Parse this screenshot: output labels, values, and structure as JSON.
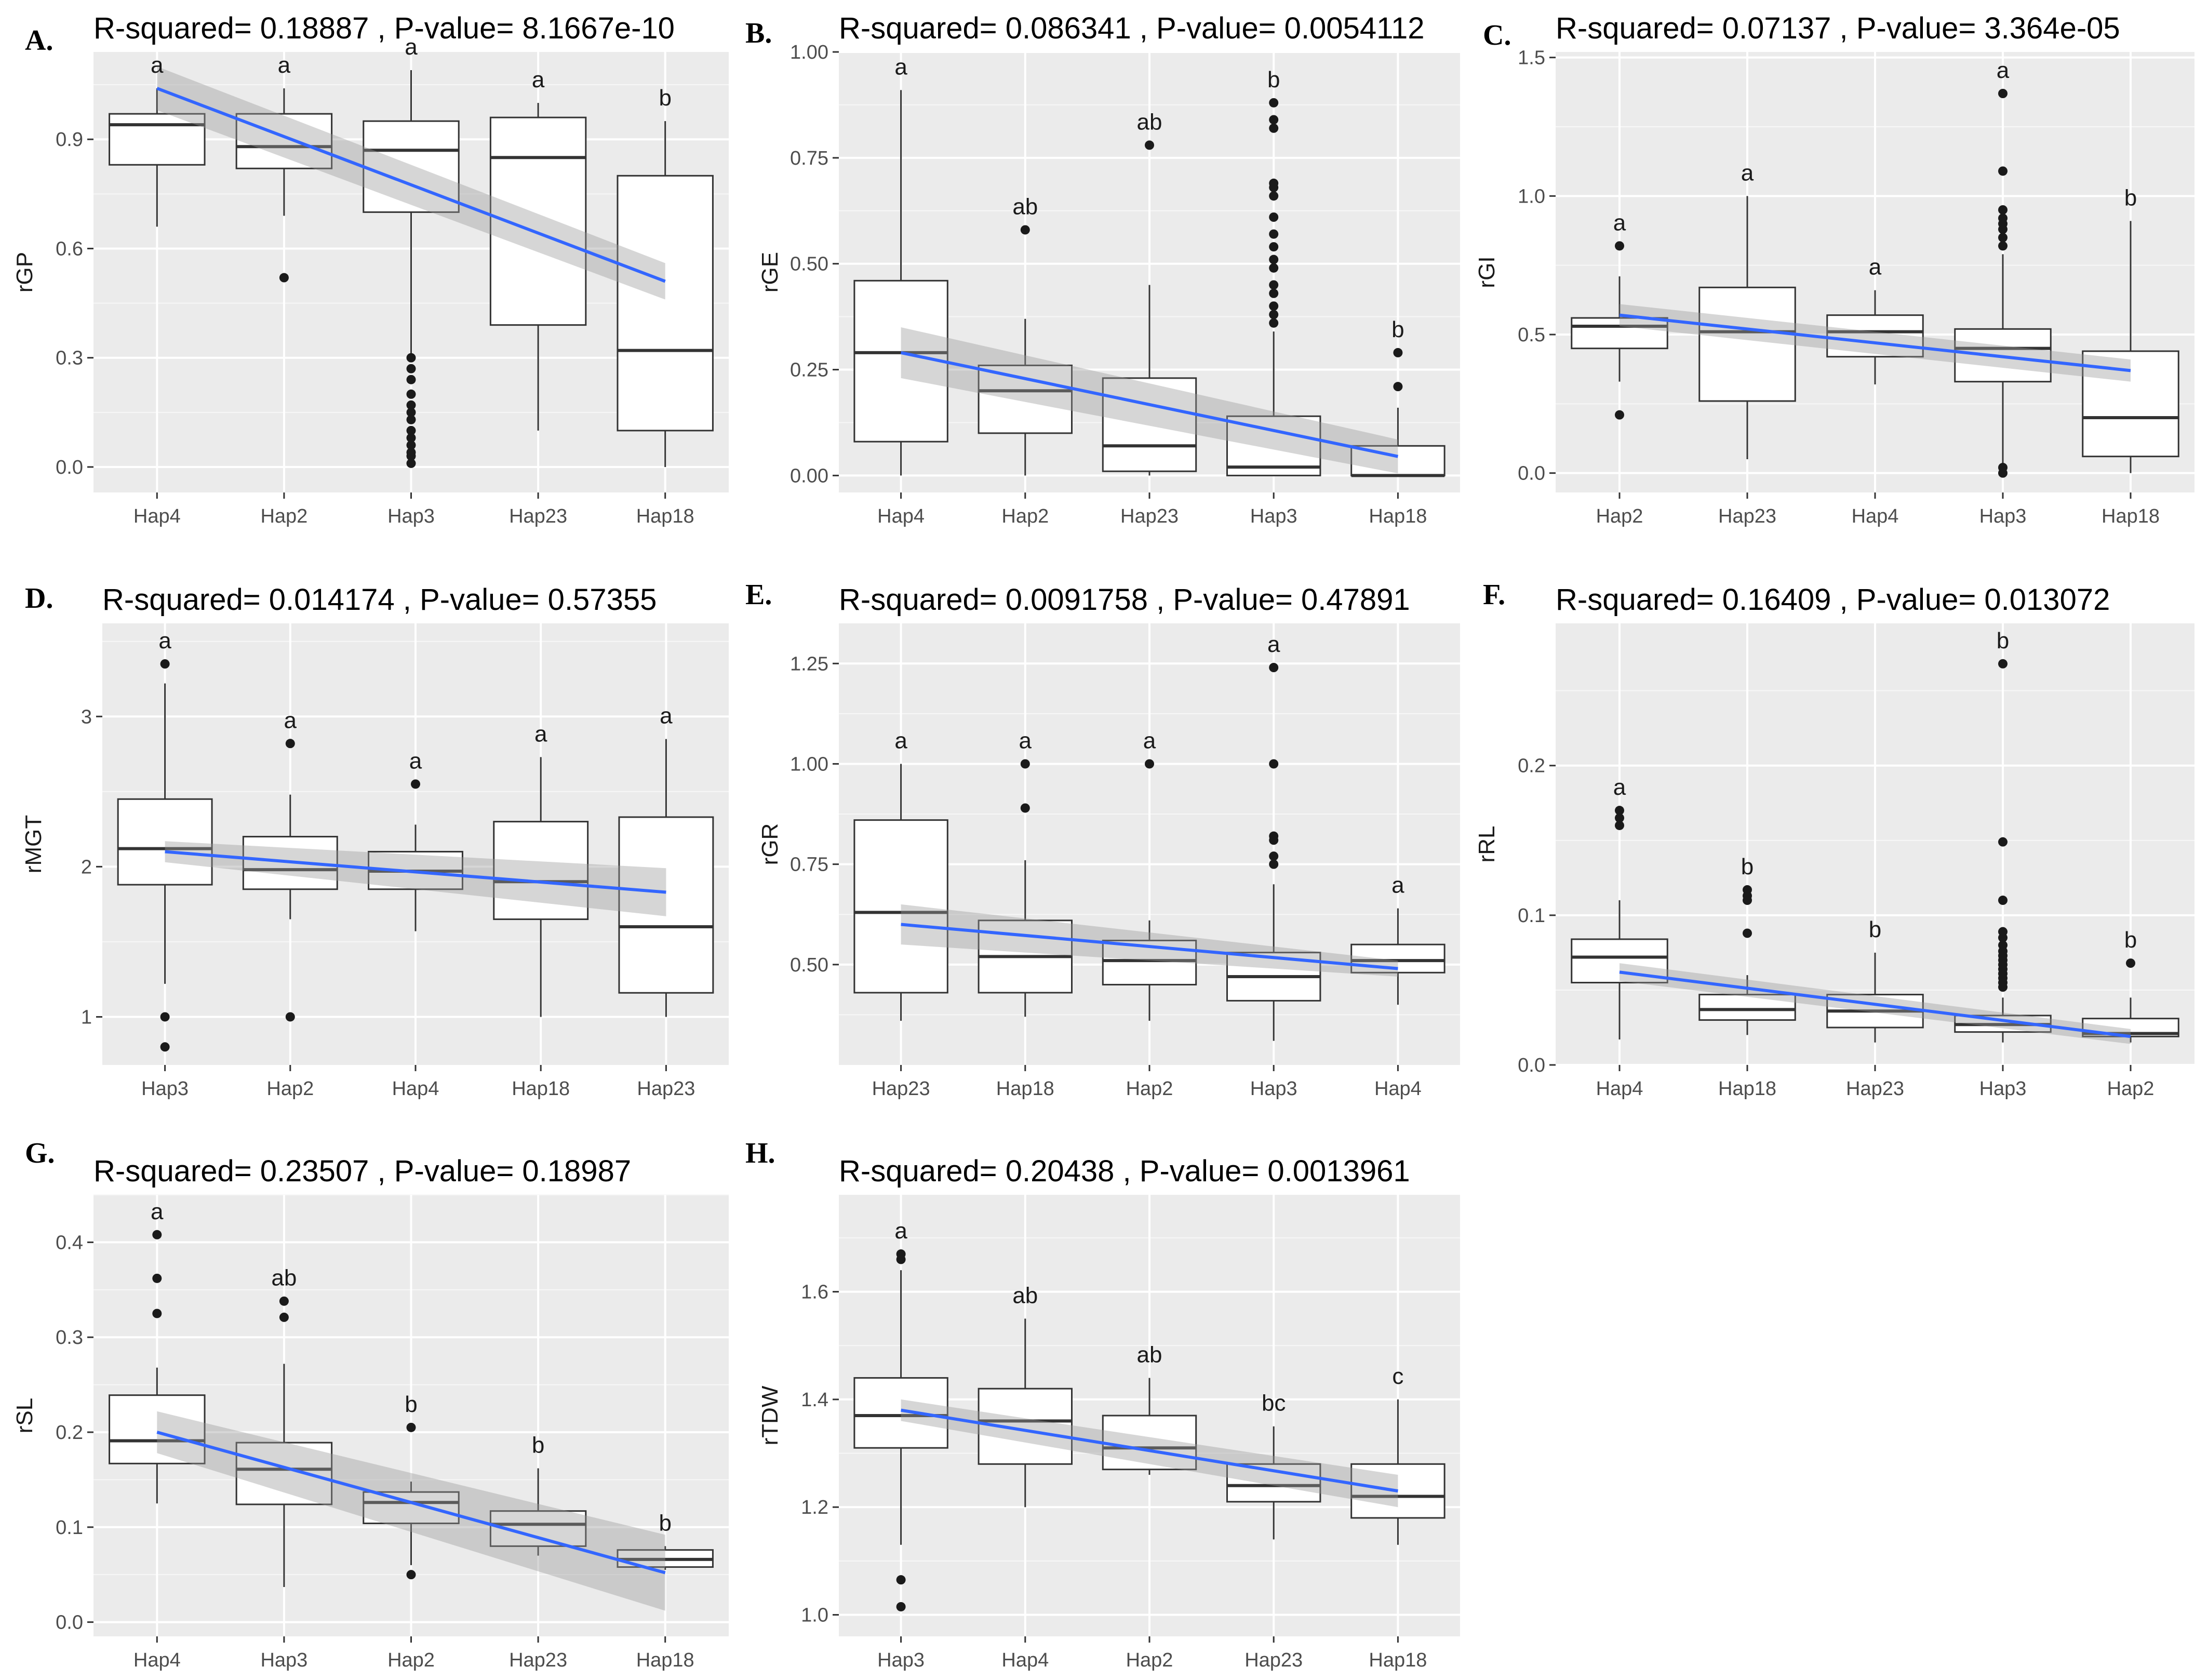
{
  "chart_data": [
    {
      "panel": "A.",
      "type": "box",
      "title": "R-squared= 0.18887 , P-value= 8.1667e-10",
      "ylabel": "rGP",
      "ylim": [
        -0.07,
        1.14
      ],
      "yticks": [
        0.0,
        0.3,
        0.6,
        0.9
      ],
      "ytick_labels": [
        "0.0",
        "0.3",
        "0.6",
        "0.9"
      ],
      "categories": [
        "Hap4",
        "Hap2",
        "Hap3",
        "Hap23",
        "Hap18"
      ],
      "boxes": [
        {
          "q1": 0.83,
          "median": 0.94,
          "q3": 0.97,
          "wlo": 0.66,
          "whi": 1.04,
          "outliers": []
        },
        {
          "q1": 0.82,
          "median": 0.88,
          "q3": 0.97,
          "wlo": 0.69,
          "whi": 1.04,
          "outliers": [
            0.52
          ]
        },
        {
          "q1": 0.7,
          "median": 0.87,
          "q3": 0.95,
          "wlo": 0.31,
          "whi": 1.09,
          "outliers": [
            0.3,
            0.27,
            0.24,
            0.2,
            0.17,
            0.15,
            0.13,
            0.1,
            0.08,
            0.06,
            0.04,
            0.03,
            0.01
          ]
        },
        {
          "q1": 0.39,
          "median": 0.85,
          "q3": 0.96,
          "wlo": 0.1,
          "whi": 1.0,
          "outliers": []
        },
        {
          "q1": 0.1,
          "median": 0.32,
          "q3": 0.8,
          "wlo": 0.0,
          "whi": 0.95,
          "outliers": []
        }
      ],
      "letters": [
        "a",
        "a",
        "a",
        "a",
        "b"
      ],
      "fit": [
        1.04,
        0.51
      ],
      "band": [
        0.06,
        0.05
      ]
    },
    {
      "panel": "B.",
      "type": "box",
      "title": "R-squared= 0.086341 , P-value= 0.0054112",
      "ylabel": "rGE",
      "ylim": [
        -0.04,
        1.0
      ],
      "yticks": [
        0.0,
        0.25,
        0.5,
        0.75,
        1.0
      ],
      "ytick_labels": [
        "0.00",
        "0.25",
        "0.50",
        "0.75",
        "1.00"
      ],
      "categories": [
        "Hap4",
        "Hap2",
        "Hap23",
        "Hap3",
        "Hap18"
      ],
      "boxes": [
        {
          "q1": 0.08,
          "median": 0.29,
          "q3": 0.46,
          "wlo": 0.0,
          "whi": 0.91,
          "outliers": []
        },
        {
          "q1": 0.1,
          "median": 0.2,
          "q3": 0.26,
          "wlo": 0.0,
          "whi": 0.37,
          "outliers": [
            0.58
          ]
        },
        {
          "q1": 0.01,
          "median": 0.07,
          "q3": 0.23,
          "wlo": 0.0,
          "whi": 0.45,
          "outliers": [
            0.78
          ]
        },
        {
          "q1": 0.0,
          "median": 0.02,
          "q3": 0.14,
          "wlo": 0.0,
          "whi": 0.34,
          "outliers": [
            0.36,
            0.38,
            0.4,
            0.43,
            0.45,
            0.49,
            0.51,
            0.54,
            0.57,
            0.61,
            0.66,
            0.68,
            0.69,
            0.82,
            0.84,
            0.88
          ]
        },
        {
          "q1": 0.0,
          "median": 0.0,
          "q3": 0.07,
          "wlo": 0.0,
          "whi": 0.16,
          "outliers": [
            0.21,
            0.29
          ]
        }
      ],
      "letters": [
        "a",
        "ab",
        "ab",
        "b",
        "b"
      ],
      "fit": [
        0.29,
        0.045
      ],
      "band": [
        0.06,
        0.04
      ]
    },
    {
      "panel": "C.",
      "type": "box",
      "title": "R-squared= 0.07137 , P-value= 3.364e-05",
      "ylabel": "rGI",
      "ylim": [
        -0.07,
        1.52
      ],
      "yticks": [
        0.0,
        0.5,
        1.0,
        1.5
      ],
      "ytick_labels": [
        "0.0",
        "0.5",
        "1.0",
        "1.5"
      ],
      "categories": [
        "Hap2",
        "Hap23",
        "Hap4",
        "Hap3",
        "Hap18"
      ],
      "boxes": [
        {
          "q1": 0.45,
          "median": 0.53,
          "q3": 0.56,
          "wlo": 0.33,
          "whi": 0.71,
          "outliers": [
            0.21,
            0.82
          ]
        },
        {
          "q1": 0.26,
          "median": 0.51,
          "q3": 0.67,
          "wlo": 0.05,
          "whi": 1.0,
          "outliers": []
        },
        {
          "q1": 0.42,
          "median": 0.51,
          "q3": 0.57,
          "wlo": 0.32,
          "whi": 0.66,
          "outliers": []
        },
        {
          "q1": 0.33,
          "median": 0.45,
          "q3": 0.52,
          "wlo": 0.03,
          "whi": 0.79,
          "outliers": [
            0.0,
            0.02,
            0.82,
            0.85,
            0.88,
            0.9,
            0.92,
            0.95,
            1.09,
            1.37
          ]
        },
        {
          "q1": 0.06,
          "median": 0.2,
          "q3": 0.44,
          "wlo": 0.0,
          "whi": 0.91,
          "outliers": []
        }
      ],
      "letters": [
        "a",
        "a",
        "a",
        "a",
        "b"
      ],
      "fit": [
        0.57,
        0.37
      ],
      "band": [
        0.04,
        0.04
      ]
    },
    {
      "panel": "D.",
      "type": "box",
      "title": "R-squared= 0.014174 , P-value= 0.57355",
      "ylabel": "rMGT",
      "ylim": [
        0.68,
        3.62
      ],
      "yticks": [
        1,
        2,
        3
      ],
      "ytick_labels": [
        "1",
        "2",
        "3"
      ],
      "categories": [
        "Hap3",
        "Hap2",
        "Hap4",
        "Hap18",
        "Hap23"
      ],
      "boxes": [
        {
          "q1": 1.88,
          "median": 2.12,
          "q3": 2.45,
          "wlo": 1.22,
          "whi": 3.22,
          "outliers": [
            0.8,
            1.0,
            3.35
          ]
        },
        {
          "q1": 1.85,
          "median": 1.98,
          "q3": 2.2,
          "wlo": 1.65,
          "whi": 2.48,
          "outliers": [
            1.0,
            2.82
          ]
        },
        {
          "q1": 1.85,
          "median": 1.97,
          "q3": 2.1,
          "wlo": 1.57,
          "whi": 2.28,
          "outliers": [
            2.55
          ]
        },
        {
          "q1": 1.65,
          "median": 1.9,
          "q3": 2.3,
          "wlo": 1.0,
          "whi": 2.73,
          "outliers": []
        },
        {
          "q1": 1.16,
          "median": 1.6,
          "q3": 2.33,
          "wlo": 1.0,
          "whi": 2.85,
          "outliers": []
        }
      ],
      "letters": [
        "a",
        "a",
        "a",
        "a",
        "a"
      ],
      "fit": [
        2.1,
        1.83
      ],
      "band": [
        0.07,
        0.16
      ]
    },
    {
      "panel": "E.",
      "type": "box",
      "title": "R-squared= 0.0091758 , P-value= 0.47891",
      "ylabel": "rGR",
      "ylim": [
        0.25,
        1.35
      ],
      "yticks": [
        0.5,
        0.75,
        1.0,
        1.25
      ],
      "ytick_labels": [
        "0.50",
        "0.75",
        "1.00",
        "1.25"
      ],
      "categories": [
        "Hap23",
        "Hap18",
        "Hap2",
        "Hap3",
        "Hap4"
      ],
      "boxes": [
        {
          "q1": 0.43,
          "median": 0.63,
          "q3": 0.86,
          "wlo": 0.36,
          "whi": 1.0,
          "outliers": []
        },
        {
          "q1": 0.43,
          "median": 0.52,
          "q3": 0.61,
          "wlo": 0.37,
          "whi": 0.76,
          "outliers": [
            0.89,
            1.0
          ]
        },
        {
          "q1": 0.45,
          "median": 0.51,
          "q3": 0.56,
          "wlo": 0.36,
          "whi": 0.61,
          "outliers": [
            1.0
          ]
        },
        {
          "q1": 0.41,
          "median": 0.47,
          "q3": 0.53,
          "wlo": 0.31,
          "whi": 0.7,
          "outliers": [
            0.75,
            0.77,
            0.81,
            0.82,
            1.0,
            1.24
          ]
        },
        {
          "q1": 0.48,
          "median": 0.51,
          "q3": 0.55,
          "wlo": 0.4,
          "whi": 0.64,
          "outliers": []
        }
      ],
      "letters": [
        "a",
        "a",
        "a",
        "a",
        "a"
      ],
      "fit": [
        0.6,
        0.49
      ],
      "band": [
        0.05,
        0.02
      ]
    },
    {
      "panel": "F.",
      "type": "box",
      "title": "R-squared= 0.16409 , P-value= 0.013072",
      "ylabel": "rRL",
      "ylim": [
        0.0,
        0.295
      ],
      "yticks": [
        0.0,
        0.1,
        0.2
      ],
      "ytick_labels": [
        "0.0",
        "0.1",
        "0.2"
      ],
      "categories": [
        "Hap4",
        "Hap18",
        "Hap23",
        "Hap3",
        "Hap2"
      ],
      "boxes": [
        {
          "q1": 0.055,
          "median": 0.072,
          "q3": 0.084,
          "wlo": 0.017,
          "whi": 0.11,
          "outliers": [
            0.16,
            0.165,
            0.17
          ]
        },
        {
          "q1": 0.03,
          "median": 0.037,
          "q3": 0.047,
          "wlo": 0.02,
          "whi": 0.06,
          "outliers": [
            0.088,
            0.11,
            0.113,
            0.117
          ]
        },
        {
          "q1": 0.025,
          "median": 0.036,
          "q3": 0.047,
          "wlo": 0.015,
          "whi": 0.075,
          "outliers": []
        },
        {
          "q1": 0.022,
          "median": 0.027,
          "q3": 0.033,
          "wlo": 0.015,
          "whi": 0.045,
          "outliers": [
            0.052,
            0.055,
            0.058,
            0.061,
            0.064,
            0.067,
            0.07,
            0.073,
            0.076,
            0.08,
            0.085,
            0.089,
            0.11,
            0.149,
            0.268
          ]
        },
        {
          "q1": 0.019,
          "median": 0.021,
          "q3": 0.031,
          "wlo": 0.015,
          "whi": 0.045,
          "outliers": [
            0.068
          ]
        }
      ],
      "letters": [
        "a",
        "b",
        "b",
        "b",
        "b"
      ],
      "fit": [
        0.062,
        0.019
      ],
      "band": [
        0.006,
        0.005
      ]
    },
    {
      "panel": "G.",
      "type": "box",
      "title": "R-squared= 0.23507 , P-value= 0.18987",
      "ylabel": "rSL",
      "ylim": [
        -0.015,
        0.45
      ],
      "yticks": [
        0.0,
        0.1,
        0.2,
        0.3,
        0.4
      ],
      "ytick_labels": [
        "0.0",
        "0.1",
        "0.2",
        "0.3",
        "0.4"
      ],
      "categories": [
        "Hap4",
        "Hap3",
        "Hap2",
        "Hap23",
        "Hap18"
      ],
      "boxes": [
        {
          "q1": 0.167,
          "median": 0.191,
          "q3": 0.239,
          "wlo": 0.125,
          "whi": 0.268,
          "outliers": [
            0.325,
            0.362,
            0.408
          ]
        },
        {
          "q1": 0.124,
          "median": 0.161,
          "q3": 0.189,
          "wlo": 0.037,
          "whi": 0.272,
          "outliers": [
            0.321,
            0.338
          ]
        },
        {
          "q1": 0.104,
          "median": 0.126,
          "q3": 0.137,
          "wlo": 0.06,
          "whi": 0.148,
          "outliers": [
            0.05,
            0.205
          ]
        },
        {
          "q1": 0.08,
          "median": 0.103,
          "q3": 0.117,
          "wlo": 0.07,
          "whi": 0.162,
          "outliers": []
        },
        {
          "q1": 0.058,
          "median": 0.066,
          "q3": 0.076,
          "wlo": 0.055,
          "whi": 0.08,
          "outliers": []
        }
      ],
      "letters": [
        "a",
        "ab",
        "b",
        "b",
        "b"
      ],
      "fit": [
        0.2,
        0.052
      ],
      "band": [
        0.022,
        0.04
      ]
    },
    {
      "panel": "H.",
      "type": "box",
      "title": "R-squared= 0.20438 , P-value= 0.0013961",
      "ylabel": "rTDW",
      "ylim": [
        0.96,
        1.78
      ],
      "yticks": [
        1.0,
        1.2,
        1.4,
        1.6
      ],
      "ytick_labels": [
        "1.0",
        "1.2",
        "1.4",
        "1.6"
      ],
      "categories": [
        "Hap3",
        "Hap4",
        "Hap2",
        "Hap23",
        "Hap18"
      ],
      "boxes": [
        {
          "q1": 1.31,
          "median": 1.37,
          "q3": 1.44,
          "wlo": 1.13,
          "whi": 1.64,
          "outliers": [
            1.015,
            1.065,
            1.66,
            1.67
          ]
        },
        {
          "q1": 1.28,
          "median": 1.36,
          "q3": 1.42,
          "wlo": 1.2,
          "whi": 1.55,
          "outliers": []
        },
        {
          "q1": 1.27,
          "median": 1.31,
          "q3": 1.37,
          "wlo": 1.26,
          "whi": 1.44,
          "outliers": []
        },
        {
          "q1": 1.21,
          "median": 1.24,
          "q3": 1.28,
          "wlo": 1.14,
          "whi": 1.35,
          "outliers": []
        },
        {
          "q1": 1.18,
          "median": 1.22,
          "q3": 1.28,
          "wlo": 1.13,
          "whi": 1.4,
          "outliers": []
        }
      ],
      "letters": [
        "a",
        "ab",
        "ab",
        "bc",
        "c"
      ],
      "fit": [
        1.38,
        1.23
      ],
      "band": [
        0.02,
        0.03
      ]
    }
  ],
  "style": {
    "panel_bg": "#ebebeb",
    "grid_major": "#ffffff",
    "fit_line": "#3366ff",
    "band": "#999999",
    "box_stroke": "#333333",
    "box_fill": "#ffffff",
    "text": "#000000"
  }
}
